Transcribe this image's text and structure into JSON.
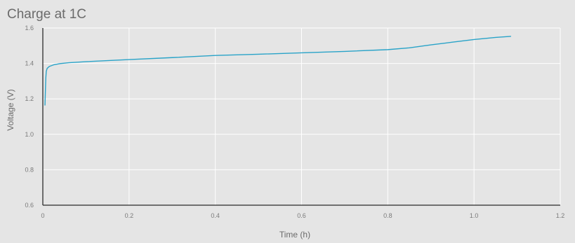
{
  "chart_data": {
    "type": "line",
    "title": "Charge at 1C",
    "xlabel": "Time (h)",
    "ylabel": "Voltage (V)",
    "xlim": [
      0,
      1.2
    ],
    "ylim": [
      0.6,
      1.6
    ],
    "x_ticks": [
      "0",
      "0.2",
      "0.4",
      "0.6",
      "0.8",
      "1.0",
      "1.2"
    ],
    "y_ticks": [
      "0.6",
      "0.8",
      "1.0",
      "1.2",
      "1.4",
      "1.6"
    ],
    "grid": true,
    "colors": {
      "line": "#29a3c8",
      "grid": "#ffffff",
      "axis": "#2b2b2b",
      "background": "#e5e5e5"
    },
    "series": [
      {
        "x": [
          0.005,
          0.006,
          0.007,
          0.008,
          0.01,
          0.015,
          0.025,
          0.04,
          0.06,
          0.1,
          0.2,
          0.3,
          0.4,
          0.5,
          0.6,
          0.7,
          0.8,
          0.85,
          0.9,
          0.95,
          1.0,
          1.05,
          1.085
        ],
        "y": [
          1.165,
          1.25,
          1.32,
          1.355,
          1.372,
          1.383,
          1.392,
          1.399,
          1.404,
          1.41,
          1.422,
          1.433,
          1.445,
          1.452,
          1.46,
          1.468,
          1.478,
          1.488,
          1.505,
          1.52,
          1.535,
          1.547,
          1.553
        ]
      }
    ]
  }
}
